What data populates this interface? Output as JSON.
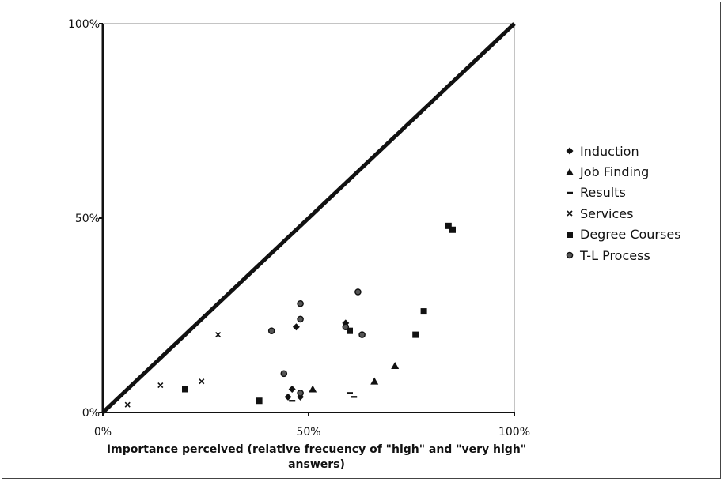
{
  "chart_data": {
    "type": "scatter",
    "xlabel": "Importance perceived (relative frecuency of \"high\" and \"very high\" answers)",
    "ylabel": "",
    "xlim": [
      0,
      1
    ],
    "ylim": [
      0,
      1
    ],
    "x_ticks": [
      "0%",
      "50%",
      "100%"
    ],
    "y_ticks": [
      "0%",
      "50%",
      "100%"
    ],
    "reference_line": {
      "from": [
        0,
        0
      ],
      "to": [
        1,
        1
      ]
    },
    "legend_position": "right",
    "series": [
      {
        "name": "Induction",
        "marker": "diamond",
        "x": [
          0.45,
          0.46,
          0.47,
          0.48,
          0.59
        ],
        "y": [
          0.04,
          0.06,
          0.22,
          0.04,
          0.23
        ]
      },
      {
        "name": "Job Finding",
        "marker": "triangle",
        "x": [
          0.51,
          0.66,
          0.71
        ],
        "y": [
          0.06,
          0.08,
          0.12
        ]
      },
      {
        "name": "Results",
        "marker": "dash",
        "x": [
          0.46,
          0.6,
          0.61
        ],
        "y": [
          0.03,
          0.05,
          0.04
        ]
      },
      {
        "name": "Services",
        "marker": "x",
        "x": [
          0.06,
          0.14,
          0.24,
          0.28
        ],
        "y": [
          0.02,
          0.07,
          0.08,
          0.2
        ]
      },
      {
        "name": "Degree Courses",
        "marker": "square",
        "x": [
          0.2,
          0.38,
          0.6,
          0.76,
          0.78,
          0.84,
          0.85
        ],
        "y": [
          0.06,
          0.03,
          0.21,
          0.2,
          0.26,
          0.48,
          0.47
        ]
      },
      {
        "name": "T-L Process",
        "marker": "circle",
        "x": [
          0.41,
          0.44,
          0.48,
          0.48,
          0.48,
          0.62,
          0.63,
          0.59
        ],
        "y": [
          0.21,
          0.1,
          0.28,
          0.24,
          0.05,
          0.31,
          0.2,
          0.22
        ]
      }
    ]
  }
}
